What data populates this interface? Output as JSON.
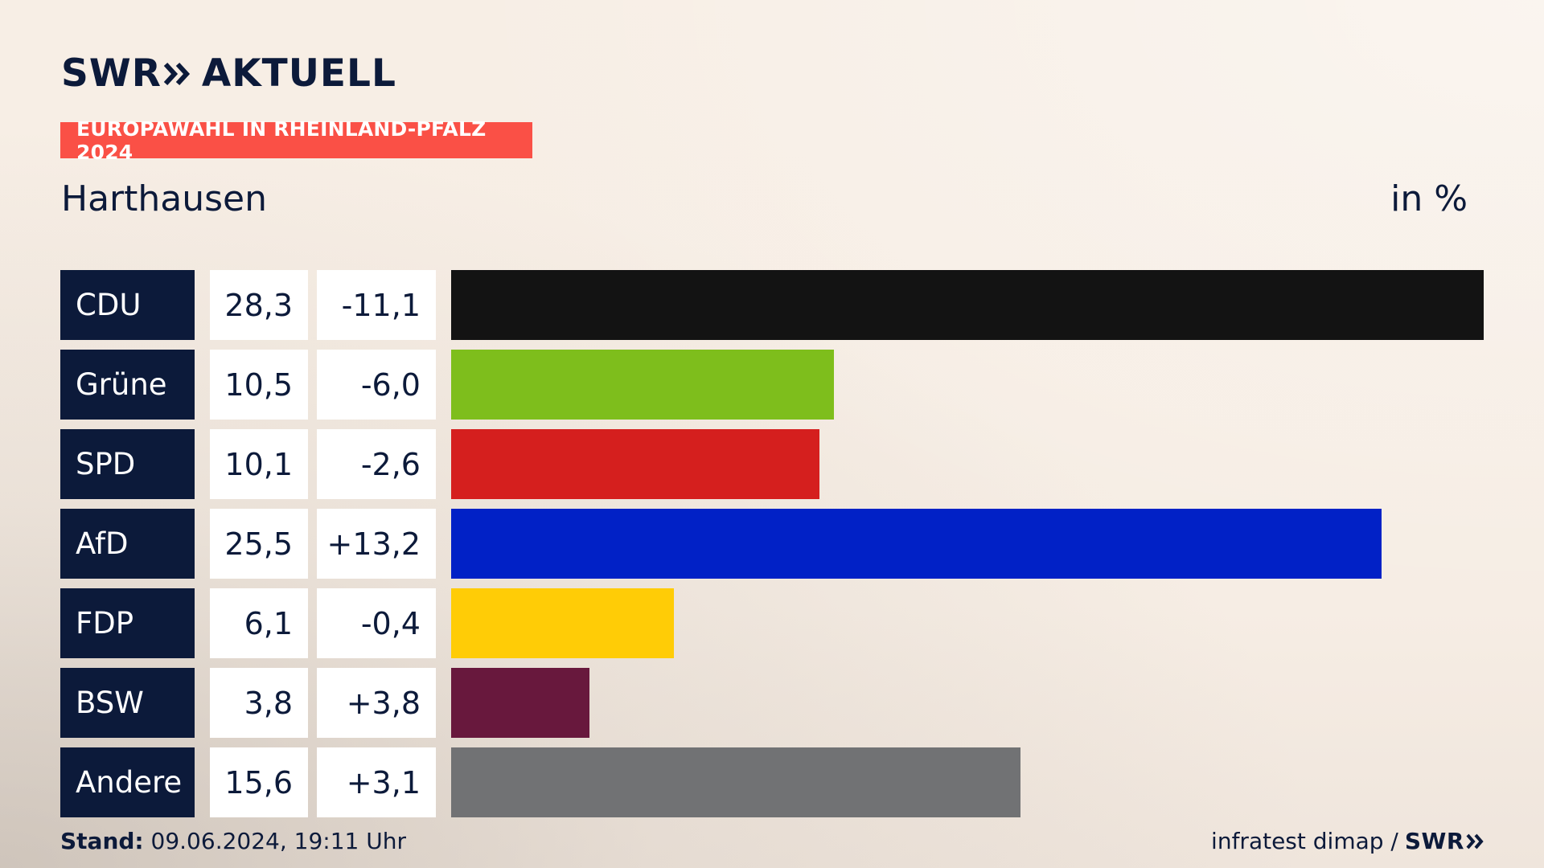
{
  "header": {
    "logo_text_left": "SWR",
    "logo_text_right": "AKTUELL",
    "tagline": "EUROPAWAHL IN RHEINLAND-PFALZ 2024",
    "region": "Harthausen",
    "unit": "in %"
  },
  "footer": {
    "stand_label": "Stand:",
    "stand_value": "09.06.2024, 19:11 Uhr",
    "source": "infratest dimap /",
    "source_brand": "SWR"
  },
  "colors": {
    "navy": "#0c1a3a",
    "accent": "#fa5046"
  },
  "chart_data": {
    "type": "bar",
    "orientation": "horizontal",
    "xlim": [
      0,
      28.3
    ],
    "rows": [
      {
        "party": "CDU",
        "value": 28.3,
        "value_label": "28,3",
        "diff_label": "-11,1",
        "color": "#131313"
      },
      {
        "party": "Grüne",
        "value": 10.5,
        "value_label": "10,5",
        "diff_label": "-6,0",
        "color": "#7ebe1c"
      },
      {
        "party": "SPD",
        "value": 10.1,
        "value_label": "10,1",
        "diff_label": "-2,6",
        "color": "#d51f1e"
      },
      {
        "party": "AfD",
        "value": 25.5,
        "value_label": "25,5",
        "diff_label": "+13,2",
        "color": "#0121c6"
      },
      {
        "party": "FDP",
        "value": 6.1,
        "value_label": "6,1",
        "diff_label": "-0,4",
        "color": "#ffcc06"
      },
      {
        "party": "BSW",
        "value": 3.8,
        "value_label": "3,8",
        "diff_label": "+3,8",
        "color": "#68183d"
      },
      {
        "party": "Andere",
        "value": 15.6,
        "value_label": "15,6",
        "diff_label": "+3,1",
        "color": "#717274"
      }
    ]
  }
}
